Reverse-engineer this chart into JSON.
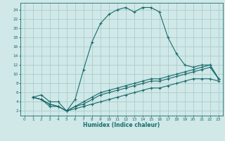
{
  "title": "",
  "xlabel": "Humidex (Indice chaleur)",
  "xlim": [
    -0.5,
    23.5
  ],
  "ylim": [
    1,
    25.5
  ],
  "xticks": [
    0,
    1,
    2,
    3,
    4,
    5,
    6,
    7,
    8,
    9,
    10,
    11,
    12,
    13,
    14,
    15,
    16,
    17,
    18,
    19,
    20,
    21,
    22,
    23
  ],
  "yticks": [
    2,
    4,
    6,
    8,
    10,
    12,
    14,
    16,
    18,
    20,
    22,
    24
  ],
  "bg_color": "#d0e8e8",
  "line_color": "#1a6b6b",
  "grid_color": "#aacccc",
  "lines": [
    {
      "x": [
        1,
        2,
        3,
        4,
        5,
        6,
        7,
        8,
        9,
        10,
        11,
        12,
        13,
        14,
        15,
        16,
        17,
        18,
        19,
        20,
        21,
        22,
        23
      ],
      "y": [
        5,
        5.5,
        4,
        4,
        2,
        4.5,
        11,
        17,
        21,
        23,
        24,
        24.5,
        23.5,
        24.5,
        24.5,
        23.5,
        18,
        14.5,
        12,
        11.5,
        12,
        12,
        9
      ]
    },
    {
      "x": [
        1,
        2,
        3,
        4,
        5,
        6,
        7,
        8,
        9,
        10,
        11,
        12,
        13,
        14,
        15,
        16,
        17,
        18,
        19,
        20,
        21,
        22,
        23
      ],
      "y": [
        5,
        4.5,
        3.5,
        3,
        2,
        3,
        4,
        5,
        6,
        6.5,
        7,
        7.5,
        8,
        8.5,
        9,
        9,
        9.5,
        10,
        10.5,
        11,
        11.5,
        12,
        9
      ]
    },
    {
      "x": [
        1,
        2,
        3,
        4,
        5,
        6,
        7,
        8,
        9,
        10,
        11,
        12,
        13,
        14,
        15,
        16,
        17,
        18,
        19,
        20,
        21,
        22,
        23
      ],
      "y": [
        5,
        4.5,
        3.5,
        3,
        2,
        3,
        3.5,
        4.5,
        5.5,
        6,
        6.5,
        7,
        7.5,
        8,
        8.5,
        8.5,
        9,
        9.5,
        10,
        10.5,
        11,
        11.5,
        9
      ]
    },
    {
      "x": [
        1,
        2,
        3,
        4,
        5,
        6,
        7,
        8,
        9,
        10,
        11,
        12,
        13,
        14,
        15,
        16,
        17,
        18,
        19,
        20,
        21,
        22,
        23
      ],
      "y": [
        5,
        4.5,
        3,
        3,
        2,
        2.5,
        3,
        3.5,
        4,
        4.5,
        5,
        5.5,
        6,
        6.5,
        7,
        7,
        7.5,
        8,
        8.5,
        9,
        9,
        9,
        8.5
      ]
    }
  ]
}
